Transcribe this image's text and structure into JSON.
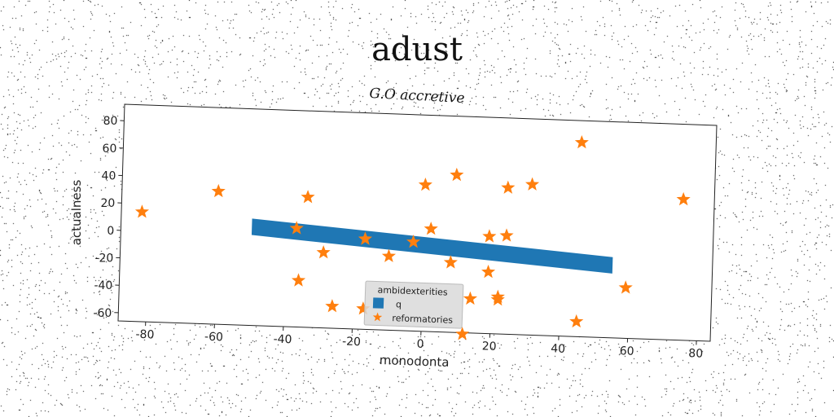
{
  "title": "adust",
  "subtitle": "G.O accretive",
  "chart_data": {
    "type": "scatter",
    "xlabel": "monodonta",
    "ylabel": "actualness",
    "xlim": [
      -88,
      84
    ],
    "ylim": [
      -66,
      92
    ],
    "xticks": [
      -80,
      -60,
      -40,
      -20,
      0,
      20,
      40,
      60,
      80
    ],
    "yticks": [
      -60,
      -40,
      -20,
      0,
      20,
      40,
      60,
      80
    ],
    "legend": {
      "title": "ambidexterities",
      "placement": "lower-center"
    },
    "band": {
      "name": "q",
      "x": [
        -50,
        55
      ],
      "y_top": [
        12,
        -7
      ],
      "y_bottom": [
        0,
        -19
      ],
      "color": "#1f77b4"
    },
    "series": [
      {
        "name": "reformatories",
        "color": "#ff7f0e",
        "marker": "star",
        "points": [
          [
            -82,
            14
          ],
          [
            -60,
            31
          ],
          [
            -34,
            29
          ],
          [
            -37,
            6
          ],
          [
            -29,
            -11
          ],
          [
            -36,
            -32
          ],
          [
            -26,
            -50
          ],
          [
            -17,
            -51
          ],
          [
            -17,
            0
          ],
          [
            -10,
            -12
          ],
          [
            -3,
            -1
          ],
          [
            0,
            41
          ],
          [
            2,
            9
          ],
          [
            8,
            -15
          ],
          [
            9,
            49
          ],
          [
            12,
            -67
          ],
          [
            14,
            -41
          ],
          [
            19,
            -21
          ],
          [
            19,
            5
          ],
          [
            22,
            -39
          ],
          [
            22,
            -41
          ],
          [
            24,
            41
          ],
          [
            24,
            6
          ],
          [
            31,
            44
          ],
          [
            45,
            76
          ],
          [
            45,
            -55
          ],
          [
            59,
            -29
          ],
          [
            75,
            37
          ]
        ]
      }
    ]
  }
}
